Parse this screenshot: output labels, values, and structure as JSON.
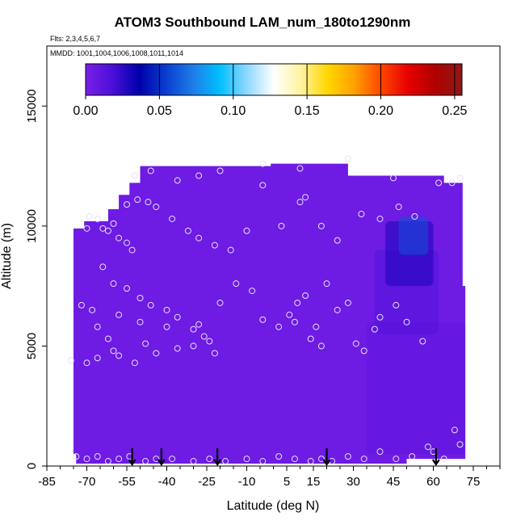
{
  "chart_data": {
    "type": "heatmap",
    "title": "ATOM3 Southbound LAM_num_180to1290nm",
    "annotations": [
      "Flts: 2,3,4,5,6,7",
      "MMDD: 1001,1004,1006,1008,1011,1014"
    ],
    "xlabel": "Latitude (deg N)",
    "ylabel": "Altitude (m)",
    "xlim": [
      -85,
      85
    ],
    "ylim": [
      0,
      17500
    ],
    "x_ticks": [
      -85,
      -70,
      -55,
      -40,
      -25,
      -10,
      5,
      15,
      30,
      45,
      60,
      75
    ],
    "y_ticks": [
      0,
      5000,
      10000,
      15000
    ],
    "colorbar": {
      "ticks": [
        "0.00",
        "0.05",
        "0.10",
        "0.15",
        "0.20",
        "0.25"
      ],
      "range": [
        0,
        0.255
      ],
      "colors": [
        "#7b1fe8",
        "#4a0fd8",
        "#0000aa",
        "#0a3fd0",
        "#1e7de8",
        "#00bfff",
        "#8fd8ff",
        "#ffffff",
        "#fff3a0",
        "#ffd700",
        "#ffa000",
        "#ff4500",
        "#e60000",
        "#b00000",
        "#8b1a1a"
      ]
    },
    "grid": "off",
    "field_value_background": 0.005,
    "field_features": [
      {
        "lat": [
          47,
          58
        ],
        "alt": [
          8800,
          10400
        ],
        "value": 0.06
      },
      {
        "lat": [
          42,
          60
        ],
        "alt": [
          7500,
          10200
        ],
        "value": 0.03
      },
      {
        "lat": [
          38,
          62
        ],
        "alt": [
          5500,
          9000
        ],
        "value": 0.015
      },
      {
        "lat": [
          35,
          72
        ],
        "alt": [
          500,
          6000
        ],
        "value": 0.01
      }
    ],
    "flight_markers_lat": [
      -53,
      -42,
      -21,
      20,
      61
    ],
    "sample_points": [
      [
        -69,
        10400
      ],
      [
        -66,
        10300
      ],
      [
        -64,
        9900
      ],
      [
        -62,
        9800
      ],
      [
        -60,
        10100
      ],
      [
        -58,
        9500
      ],
      [
        -55,
        9300
      ],
      [
        -53,
        9000
      ],
      [
        -55,
        10900
      ],
      [
        -51,
        11100
      ],
      [
        -47,
        11000
      ],
      [
        -44,
        10800
      ],
      [
        -38,
        10300
      ],
      [
        -32,
        9800
      ],
      [
        -28,
        9500
      ],
      [
        -22,
        9200
      ],
      [
        -16,
        9000
      ],
      [
        -10,
        9800
      ],
      [
        -4,
        11700
      ],
      [
        3,
        10000
      ],
      [
        10,
        11000
      ],
      [
        12,
        11200
      ],
      [
        18,
        10000
      ],
      [
        24,
        9400
      ],
      [
        33,
        10500
      ],
      [
        40,
        10300
      ],
      [
        47,
        10800
      ],
      [
        53,
        10400
      ],
      [
        62,
        11800
      ],
      [
        67,
        11800
      ],
      [
        70,
        12000
      ],
      [
        -70,
        9900
      ],
      [
        -64,
        8300
      ],
      [
        -60,
        7600
      ],
      [
        -55,
        7400
      ],
      [
        -50,
        7000
      ],
      [
        -46,
        6700
      ],
      [
        -40,
        6500
      ],
      [
        -36,
        6200
      ],
      [
        -30,
        5700
      ],
      [
        -26,
        5400
      ],
      [
        -20,
        6800
      ],
      [
        -14,
        7600
      ],
      [
        -8,
        7300
      ],
      [
        -4,
        6100
      ],
      [
        2,
        5800
      ],
      [
        6,
        6300
      ],
      [
        9,
        6800
      ],
      [
        12,
        7100
      ],
      [
        16,
        5800
      ],
      [
        20,
        7600
      ],
      [
        24,
        6500
      ],
      [
        28,
        6800
      ],
      [
        31,
        5100
      ],
      [
        34,
        4800
      ],
      [
        38,
        5700
      ],
      [
        40,
        6200
      ],
      [
        46,
        6700
      ],
      [
        50,
        6000
      ],
      [
        56,
        5200
      ],
      [
        -72,
        6700
      ],
      [
        -68,
        6500
      ],
      [
        -66,
        5800
      ],
      [
        -62,
        5300
      ],
      [
        -60,
        4800
      ],
      [
        -58,
        4600
      ],
      [
        -52,
        4300
      ],
      [
        -48,
        5100
      ],
      [
        -44,
        4700
      ],
      [
        -36,
        4900
      ],
      [
        -28,
        5900
      ],
      [
        -22,
        4700
      ],
      [
        -76,
        4400
      ],
      [
        -70,
        4300
      ],
      [
        -66,
        4500
      ],
      [
        -58,
        6300
      ],
      [
        -50,
        6000
      ],
      [
        -40,
        5800
      ],
      [
        -30,
        5000
      ],
      [
        -24,
        5200
      ],
      [
        8,
        6000
      ],
      [
        14,
        5300
      ],
      [
        18,
        5000
      ],
      [
        -74,
        400
      ],
      [
        -70,
        300
      ],
      [
        -66,
        400
      ],
      [
        -62,
        200
      ],
      [
        -58,
        300
      ],
      [
        -54,
        400
      ],
      [
        -48,
        200
      ],
      [
        -44,
        300
      ],
      [
        -38,
        300
      ],
      [
        -30,
        200
      ],
      [
        -24,
        300
      ],
      [
        -18,
        200
      ],
      [
        -10,
        300
      ],
      [
        -4,
        200
      ],
      [
        2,
        400
      ],
      [
        8,
        300
      ],
      [
        14,
        200
      ],
      [
        18,
        300
      ],
      [
        22,
        200
      ],
      [
        28,
        400
      ],
      [
        34,
        300
      ],
      [
        40,
        600
      ],
      [
        46,
        300
      ],
      [
        52,
        400
      ],
      [
        58,
        800
      ],
      [
        60,
        600
      ],
      [
        64,
        300
      ],
      [
        68,
        1500
      ],
      [
        70,
        900
      ],
      [
        -36,
        11900
      ],
      [
        -28,
        12100
      ],
      [
        -20,
        12300
      ],
      [
        -4,
        12600
      ],
      [
        10,
        12400
      ],
      [
        28,
        12800
      ],
      [
        45,
        12000
      ],
      [
        -52,
        12100
      ],
      [
        -46,
        12300
      ]
    ]
  }
}
